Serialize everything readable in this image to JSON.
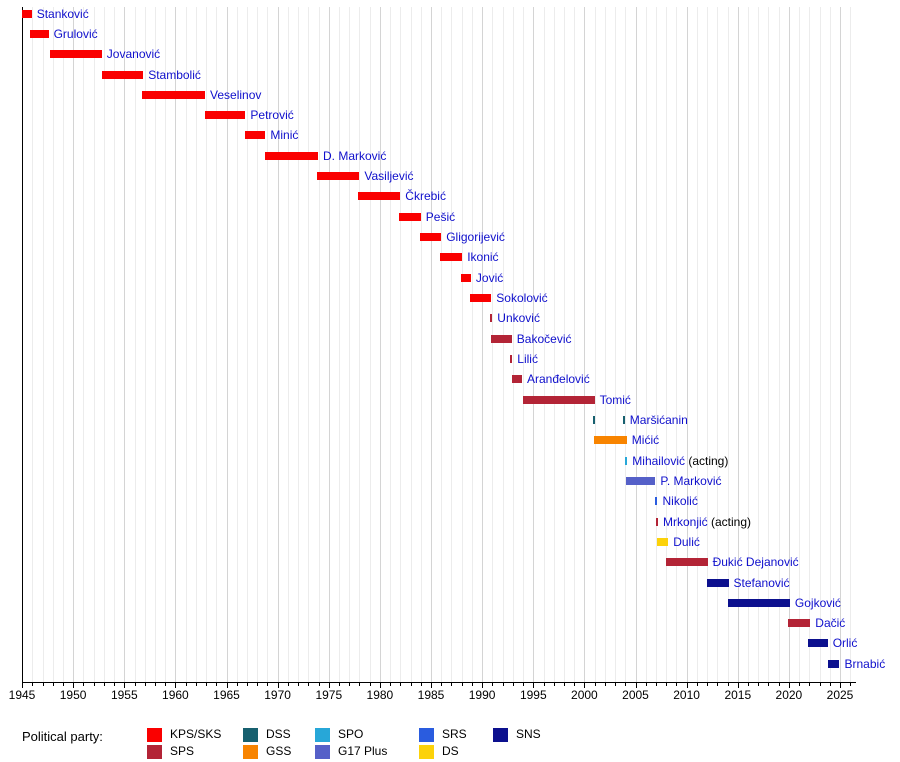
{
  "legend": {
    "title": "Political party:",
    "columns": [
      [
        {
          "label": "KPS/SKS",
          "color": "#fa0000"
        },
        {
          "label": "SPS",
          "color": "#b32436"
        }
      ],
      [
        {
          "label": "DSS",
          "color": "#17606f"
        },
        {
          "label": "GSS",
          "color": "#f88400"
        }
      ],
      [
        {
          "label": "SPO",
          "color": "#27a7d8"
        },
        {
          "label": "G17 Plus",
          "color": "#5560c8"
        }
      ],
      [
        {
          "label": "SRS",
          "color": "#2a5cdf"
        },
        {
          "label": "DS",
          "color": "#fcd20a"
        }
      ],
      [
        {
          "label": "SNS",
          "color": "#0c108e"
        }
      ]
    ]
  },
  "chart_data": {
    "type": "bar",
    "variant": "timeline",
    "title": "",
    "x_axis": {
      "min": 1945,
      "max": 2027,
      "minor_tick_step": 1,
      "major_tick_step": 5,
      "tick_labels": [
        "1945",
        "1950",
        "1955",
        "1960",
        "1965",
        "1970",
        "1975",
        "1980",
        "1985",
        "1990",
        "1995",
        "2000",
        "2005",
        "2010",
        "2015",
        "2020",
        "2025"
      ],
      "grid": "yearly"
    },
    "party_colors": {
      "KPS/SKS": "#fa0000",
      "SPS": "#b32436",
      "DSS": "#17606f",
      "GSS": "#f88400",
      "SPO": "#27a7d8",
      "G17 Plus": "#5560c8",
      "SRS": "#2a5cdf",
      "DS": "#fcd20a",
      "SNS": "#0c108e"
    },
    "rows": [
      {
        "name": "Stanković",
        "party": "KPS/SKS",
        "terms": [
          [
            1945.0,
            1945.95
          ]
        ]
      },
      {
        "name": "Grulović",
        "party": "KPS/SKS",
        "terms": [
          [
            1945.75,
            1947.6
          ]
        ]
      },
      {
        "name": "Jovanović",
        "party": "KPS/SKS",
        "terms": [
          [
            1947.7,
            1952.8
          ]
        ]
      },
      {
        "name": "Stambolić",
        "party": "KPS/SKS",
        "terms": [
          [
            1952.8,
            1956.85
          ]
        ]
      },
      {
        "name": "Veselinov",
        "party": "KPS/SKS",
        "terms": [
          [
            1956.75,
            1962.9
          ]
        ]
      },
      {
        "name": "Petrović",
        "party": "KPS/SKS",
        "terms": [
          [
            1962.9,
            1966.85
          ]
        ]
      },
      {
        "name": "Minić",
        "party": "KPS/SKS",
        "terms": [
          [
            1966.85,
            1968.8
          ]
        ]
      },
      {
        "name": "D. Marković",
        "party": "KPS/SKS",
        "terms": [
          [
            1968.75,
            1973.95
          ]
        ]
      },
      {
        "name": "Vasiljević",
        "party": "KPS/SKS",
        "terms": [
          [
            1973.85,
            1978.0
          ]
        ]
      },
      {
        "name": "Čkrebić",
        "party": "KPS/SKS",
        "terms": [
          [
            1977.9,
            1982.0
          ]
        ]
      },
      {
        "name": "Pešić",
        "party": "KPS/SKS",
        "terms": [
          [
            1981.9,
            1984.0
          ]
        ]
      },
      {
        "name": "Gligorijević",
        "party": "KPS/SKS",
        "terms": [
          [
            1983.9,
            1986.0
          ]
        ]
      },
      {
        "name": "Ikonić",
        "party": "KPS/SKS",
        "terms": [
          [
            1985.9,
            1988.05
          ]
        ]
      },
      {
        "name": "Jović",
        "party": "KPS/SKS",
        "terms": [
          [
            1987.95,
            1988.9
          ]
        ]
      },
      {
        "name": "Sokolović",
        "party": "KPS/SKS",
        "terms": [
          [
            1988.8,
            1990.9
          ]
        ]
      },
      {
        "name": "Unković",
        "party": "SPS",
        "terms": [
          [
            1990.8,
            1991.0
          ]
        ]
      },
      {
        "name": "Bakočević",
        "party": "SPS",
        "terms": [
          [
            1990.9,
            1992.9
          ]
        ]
      },
      {
        "name": "Lilić",
        "party": "SPS",
        "terms": [
          [
            1992.75,
            1992.95
          ]
        ]
      },
      {
        "name": "Aranđelović",
        "party": "SPS",
        "terms": [
          [
            1992.9,
            1993.9
          ]
        ]
      },
      {
        "name": "Tomić",
        "party": "SPS",
        "terms": [
          [
            1993.95,
            2001.0
          ]
        ]
      },
      {
        "name": "Maršićanin",
        "party": "DSS",
        "terms": [
          [
            2000.85,
            2001.05
          ],
          [
            2003.75,
            2003.95
          ]
        ]
      },
      {
        "name": "Mićić",
        "party": "GSS",
        "terms": [
          [
            2000.9,
            2004.15
          ]
        ]
      },
      {
        "name": "Mihailović",
        "suffix": "(acting)",
        "party": "SPO",
        "terms": [
          [
            2004.0,
            2004.2
          ]
        ]
      },
      {
        "name": "P. Marković",
        "party": "G17 Plus",
        "terms": [
          [
            2004.1,
            2006.95
          ]
        ]
      },
      {
        "name": "Nikolić",
        "party": "SRS",
        "terms": [
          [
            2006.95,
            2007.15
          ]
        ]
      },
      {
        "name": "Mrkonjić",
        "suffix": "(acting)",
        "party": "SPS",
        "terms": [
          [
            2007.0,
            2007.2
          ]
        ]
      },
      {
        "name": "Dulić",
        "party": "DS",
        "terms": [
          [
            2007.05,
            2008.2
          ]
        ]
      },
      {
        "name": "Đukić Dejanović",
        "party": "SPS",
        "terms": [
          [
            2008.0,
            2012.05
          ]
        ]
      },
      {
        "name": "Stefanović",
        "party": "SNS",
        "terms": [
          [
            2011.95,
            2014.1
          ]
        ]
      },
      {
        "name": "Gojković",
        "party": "SNS",
        "terms": [
          [
            2014.05,
            2020.1
          ]
        ]
      },
      {
        "name": "Dačić",
        "party": "SPS",
        "terms": [
          [
            2019.95,
            2022.1
          ]
        ]
      },
      {
        "name": "Orlić",
        "party": "SNS",
        "terms": [
          [
            2021.9,
            2023.8
          ]
        ]
      },
      {
        "name": "Brnabić",
        "party": "SNS",
        "terms": [
          [
            2023.85,
            2024.95
          ]
        ]
      }
    ],
    "style": {
      "name_label_color": "#0f0fcc",
      "acting_suffix_color": "#000000",
      "grid_minor_color": "#ececec",
      "grid_major_color": "#d4d4d4"
    }
  }
}
